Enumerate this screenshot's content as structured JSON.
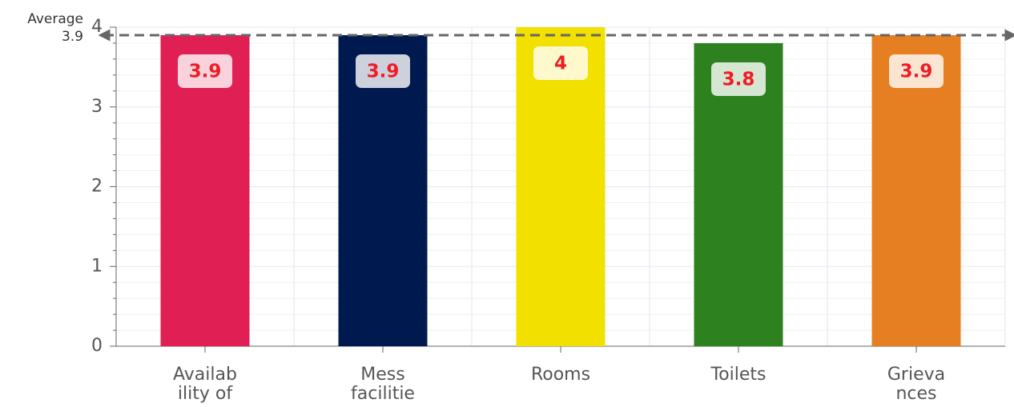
{
  "chart_data": {
    "type": "bar",
    "categories": [
      [
        "Availab",
        "ility of"
      ],
      [
        "Mess",
        "facilitie"
      ],
      [
        "Rooms"
      ],
      [
        "Toilets"
      ],
      [
        "Grieva",
        "nces"
      ]
    ],
    "values": [
      3.9,
      3.9,
      4,
      3.8,
      3.9
    ],
    "colors": [
      "#e02055",
      "#001a4f",
      "#f2e000",
      "#2d821f",
      "#e67e22"
    ],
    "ylim": [
      0,
      4
    ],
    "yticks": [
      0,
      1,
      2,
      3,
      4
    ],
    "yminorticks": [
      0.2,
      0.4,
      0.6,
      0.8,
      1.2,
      1.4,
      1.6,
      1.8,
      2.2,
      2.4,
      2.6,
      2.8,
      3.2,
      3.4,
      3.6,
      3.8
    ],
    "grid": true,
    "average": {
      "label": "Average",
      "value": 3.9
    }
  }
}
